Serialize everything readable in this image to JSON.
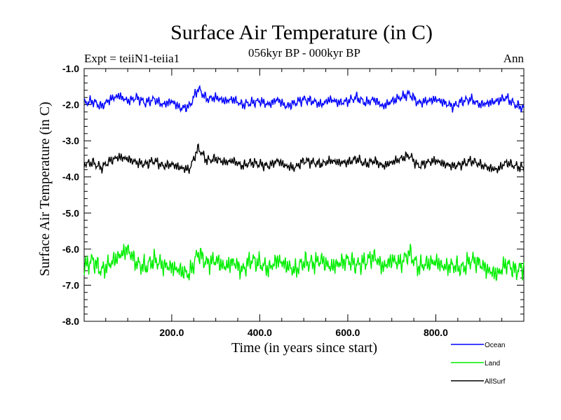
{
  "chart_data": {
    "type": "line",
    "title": "Surface Air Temperature (in C)",
    "subtitle": "056kyr BP - 000kyr BP",
    "left_label": "Expt = teiiN1-teiia1",
    "right_label": "Ann",
    "xlabel": "Time (in years since start)",
    "ylabel": "Surface Air Temperature (in C)",
    "xlim": [
      1,
      1000
    ],
    "ylim": [
      -8.0,
      -1.0
    ],
    "x_ticks": [
      200,
      400,
      600,
      800
    ],
    "x_tick_labels": [
      "200.0",
      "400.0",
      "600.0",
      "800.0"
    ],
    "y_ticks": [
      -1,
      -2,
      -3,
      -4,
      -5,
      -6,
      -7,
      -8
    ],
    "y_tick_labels": [
      "-1.0",
      "-2.0",
      "-3.0",
      "-4.0",
      "-5.0",
      "-6.0",
      "-7.0",
      "-8.0"
    ],
    "legend_position": "bottom-right",
    "grid": false,
    "series": [
      {
        "name": "Ocean",
        "color": "#0000ff",
        "x": [
          1,
          20,
          40,
          60,
          80,
          100,
          120,
          140,
          160,
          180,
          200,
          220,
          240,
          260,
          280,
          300,
          320,
          340,
          360,
          380,
          400,
          420,
          440,
          460,
          480,
          500,
          520,
          540,
          560,
          580,
          600,
          620,
          640,
          660,
          680,
          700,
          720,
          740,
          760,
          780,
          800,
          820,
          840,
          860,
          880,
          900,
          920,
          940,
          960,
          980,
          1000
        ],
        "values": [
          -1.95,
          -1.9,
          -2.05,
          -1.85,
          -1.75,
          -1.9,
          -1.8,
          -1.95,
          -1.85,
          -2.0,
          -1.9,
          -2.1,
          -2.05,
          -1.55,
          -1.85,
          -1.8,
          -1.9,
          -1.85,
          -2.0,
          -1.95,
          -1.9,
          -2.0,
          -1.85,
          -2.05,
          -1.95,
          -1.85,
          -1.9,
          -2.0,
          -1.85,
          -1.95,
          -1.9,
          -1.8,
          -1.95,
          -1.85,
          -2.05,
          -1.9,
          -1.8,
          -1.7,
          -1.95,
          -1.9,
          -1.85,
          -1.95,
          -2.05,
          -1.9,
          -1.85,
          -2.0,
          -1.95,
          -1.9,
          -1.8,
          -2.0,
          -2.1
        ]
      },
      {
        "name": "Land",
        "color": "#00ee00",
        "x": [
          1,
          20,
          40,
          60,
          80,
          100,
          120,
          140,
          160,
          180,
          200,
          220,
          240,
          260,
          280,
          300,
          320,
          340,
          360,
          380,
          400,
          420,
          440,
          460,
          480,
          500,
          520,
          540,
          560,
          580,
          600,
          620,
          640,
          660,
          680,
          700,
          720,
          740,
          760,
          780,
          800,
          820,
          840,
          860,
          880,
          900,
          920,
          940,
          960,
          980,
          1000
        ],
        "values": [
          -6.5,
          -6.3,
          -6.6,
          -6.4,
          -6.2,
          -6.0,
          -6.4,
          -6.5,
          -6.3,
          -6.45,
          -6.5,
          -6.6,
          -6.7,
          -6.1,
          -6.4,
          -6.3,
          -6.5,
          -6.35,
          -6.6,
          -6.3,
          -6.4,
          -6.55,
          -6.3,
          -6.45,
          -6.6,
          -6.35,
          -6.4,
          -6.3,
          -6.5,
          -6.4,
          -6.3,
          -6.45,
          -6.35,
          -6.2,
          -6.5,
          -6.3,
          -6.4,
          -6.1,
          -6.5,
          -6.4,
          -6.35,
          -6.5,
          -6.45,
          -6.55,
          -6.3,
          -6.4,
          -6.6,
          -6.7,
          -6.4,
          -6.6,
          -6.5
        ]
      },
      {
        "name": "AllSurf",
        "color": "#000000",
        "x": [
          1,
          20,
          40,
          60,
          80,
          100,
          120,
          140,
          160,
          180,
          200,
          220,
          240,
          260,
          280,
          300,
          320,
          340,
          360,
          380,
          400,
          420,
          440,
          460,
          480,
          500,
          520,
          540,
          560,
          580,
          600,
          620,
          640,
          660,
          680,
          700,
          720,
          740,
          760,
          780,
          800,
          820,
          840,
          860,
          880,
          900,
          920,
          940,
          960,
          980,
          1000
        ],
        "values": [
          -3.65,
          -3.6,
          -3.75,
          -3.55,
          -3.45,
          -3.5,
          -3.6,
          -3.65,
          -3.55,
          -3.7,
          -3.65,
          -3.75,
          -3.8,
          -3.2,
          -3.55,
          -3.5,
          -3.6,
          -3.55,
          -3.7,
          -3.6,
          -3.65,
          -3.7,
          -3.55,
          -3.7,
          -3.75,
          -3.55,
          -3.6,
          -3.65,
          -3.55,
          -3.6,
          -3.6,
          -3.5,
          -3.65,
          -3.55,
          -3.7,
          -3.6,
          -3.5,
          -3.4,
          -3.7,
          -3.6,
          -3.55,
          -3.65,
          -3.7,
          -3.65,
          -3.55,
          -3.65,
          -3.75,
          -3.8,
          -3.6,
          -3.7,
          -3.75
        ]
      }
    ]
  }
}
